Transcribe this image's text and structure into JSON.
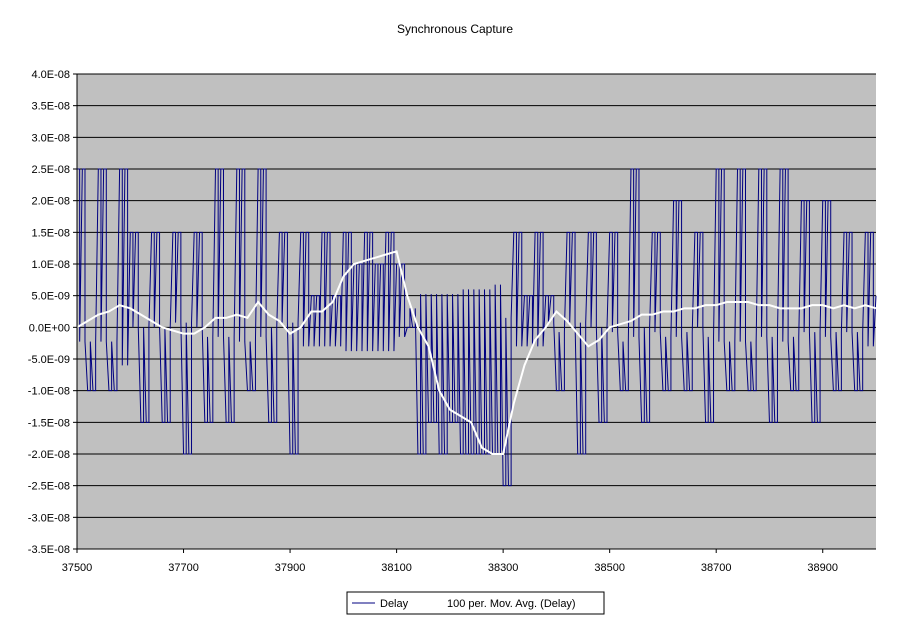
{
  "chart_data": {
    "type": "line",
    "title": "Synchronous Capture",
    "xlabel": "",
    "ylabel": "",
    "xlim": [
      37500,
      39000
    ],
    "ylim": [
      -3.5e-08,
      4e-08
    ],
    "x_ticks": [
      "37500",
      "37700",
      "37900",
      "38100",
      "38300",
      "38500",
      "38700",
      "38900"
    ],
    "x_tick_values": [
      37500,
      37700,
      37900,
      38100,
      38300,
      38500,
      38700,
      38900
    ],
    "y_ticks": [
      "4.0E-08",
      "3.5E-08",
      "3.0E-08",
      "2.5E-08",
      "2.0E-08",
      "1.5E-08",
      "1.0E-08",
      "5.0E-09",
      "0.0E+00",
      "-5.0E-09",
      "-1.0E-08",
      "-1.5E-08",
      "-2.0E-08",
      "-2.5E-08",
      "-3.0E-08",
      "-3.5E-08"
    ],
    "y_tick_values": [
      4e-08,
      3.5e-08,
      3e-08,
      2.5e-08,
      2e-08,
      1.5e-08,
      1e-08,
      5e-09,
      0,
      -5e-09,
      -1e-08,
      -1.5e-08,
      -2e-08,
      -2.5e-08,
      -3e-08,
      -3.5e-08
    ],
    "grid": "horizontal",
    "legend_position": "bottom-center",
    "colors": {
      "plot_background": "#c0c0c0",
      "delay": "#000080",
      "moving_average": "#ffffff",
      "gridline": "#000000"
    },
    "series": [
      {
        "name": "Delay",
        "style": "step noise between -2.5E-08 and 2.5E-08",
        "x": [
          37500,
          37520,
          37540,
          37560,
          37580,
          37600,
          37620,
          37640,
          37660,
          37680,
          37700,
          37720,
          37740,
          37760,
          37780,
          37800,
          37820,
          37840,
          37860,
          37880,
          37900,
          37920,
          37940,
          37960,
          37980,
          38000,
          38020,
          38040,
          38060,
          38080,
          38100,
          38120,
          38140,
          38160,
          38180,
          38200,
          38220,
          38240,
          38260,
          38280,
          38300,
          38320,
          38340,
          38360,
          38380,
          38400,
          38420,
          38440,
          38460,
          38480,
          38500,
          38520,
          38540,
          38560,
          38580,
          38600,
          38620,
          38640,
          38660,
          38680,
          38700,
          38720,
          38740,
          38760,
          38780,
          38800,
          38820,
          38840,
          38860,
          38880,
          38900,
          38920,
          38940,
          38960,
          38980,
          39000
        ],
        "values": [
          2.5e-08,
          -1e-08,
          2.5e-08,
          -1e-08,
          2.5e-08,
          1.5e-08,
          -1.5e-08,
          1.5e-08,
          -1.5e-08,
          1.5e-08,
          -2e-08,
          1.5e-08,
          -1.5e-08,
          2.5e-08,
          -1.5e-08,
          2.5e-08,
          -1e-08,
          2.5e-08,
          -1.5e-08,
          1.5e-08,
          -2e-08,
          1.5e-08,
          5e-09,
          1.5e-08,
          5e-09,
          1.5e-08,
          1e-08,
          1.5e-08,
          1e-08,
          1.5e-08,
          1e-08,
          0,
          -2e-08,
          -1.5e-08,
          -2e-08,
          -1.5e-08,
          -2e-08,
          -2e-08,
          -2e-08,
          -2e-08,
          -2.5e-08,
          1.5e-08,
          5e-09,
          1.5e-08,
          5e-09,
          -1e-08,
          1.5e-08,
          -2e-08,
          1.5e-08,
          -1.5e-08,
          1.5e-08,
          -1e-08,
          2.5e-08,
          -1.5e-08,
          1.5e-08,
          -1e-08,
          2e-08,
          -1e-08,
          1.5e-08,
          -1.5e-08,
          2.5e-08,
          -1e-08,
          2.5e-08,
          -1e-08,
          2.5e-08,
          -1.5e-08,
          2.5e-08,
          -1e-08,
          2e-08,
          -1.5e-08,
          2e-08,
          -1e-08,
          1.5e-08,
          -1e-08,
          1.5e-08,
          5e-09
        ]
      },
      {
        "name": "100 per. Mov. Avg. (Delay)",
        "x": [
          37500,
          37520,
          37540,
          37560,
          37580,
          37600,
          37620,
          37640,
          37660,
          37680,
          37700,
          37720,
          37740,
          37760,
          37780,
          37800,
          37820,
          37840,
          37860,
          37880,
          37900,
          37920,
          37940,
          37960,
          37980,
          38000,
          38020,
          38040,
          38060,
          38080,
          38100,
          38120,
          38140,
          38160,
          38180,
          38200,
          38220,
          38240,
          38260,
          38280,
          38300,
          38320,
          38340,
          38360,
          38380,
          38400,
          38420,
          38440,
          38460,
          38480,
          38500,
          38520,
          38540,
          38560,
          38580,
          38600,
          38620,
          38640,
          38660,
          38680,
          38700,
          38720,
          38740,
          38760,
          38780,
          38800,
          38820,
          38840,
          38860,
          38880,
          38900,
          38920,
          38940,
          38960,
          38980,
          39000
        ],
        "values": [
          0,
          1e-09,
          2e-09,
          2.5e-09,
          3.5e-09,
          3e-09,
          2e-09,
          1e-09,
          0,
          -5e-10,
          -1e-09,
          -1e-09,
          0,
          1.5e-09,
          1.5e-09,
          2e-09,
          1.5e-09,
          4e-09,
          2e-09,
          1e-09,
          -1e-09,
          0,
          2.5e-09,
          2.5e-09,
          4e-09,
          8e-09,
          1e-08,
          1.05e-08,
          1.1e-08,
          1.15e-08,
          1.2e-08,
          5e-09,
          0,
          -3e-09,
          -1e-08,
          -1.3e-08,
          -1.4e-08,
          -1.5e-08,
          -1.9e-08,
          -2e-08,
          -2e-08,
          -1.2e-08,
          -6e-09,
          -2e-09,
          0,
          2.5e-09,
          1e-09,
          -1e-09,
          -3e-09,
          -2e-09,
          0,
          5e-10,
          1e-09,
          2e-09,
          2e-09,
          2.5e-09,
          2.5e-09,
          3e-09,
          3e-09,
          3.5e-09,
          3.5e-09,
          4e-09,
          4e-09,
          4e-09,
          3.5e-09,
          3.5e-09,
          3e-09,
          3e-09,
          3e-09,
          3.5e-09,
          3.5e-09,
          3e-09,
          3.5e-09,
          3e-09,
          3.5e-09,
          3e-09
        ]
      }
    ]
  }
}
